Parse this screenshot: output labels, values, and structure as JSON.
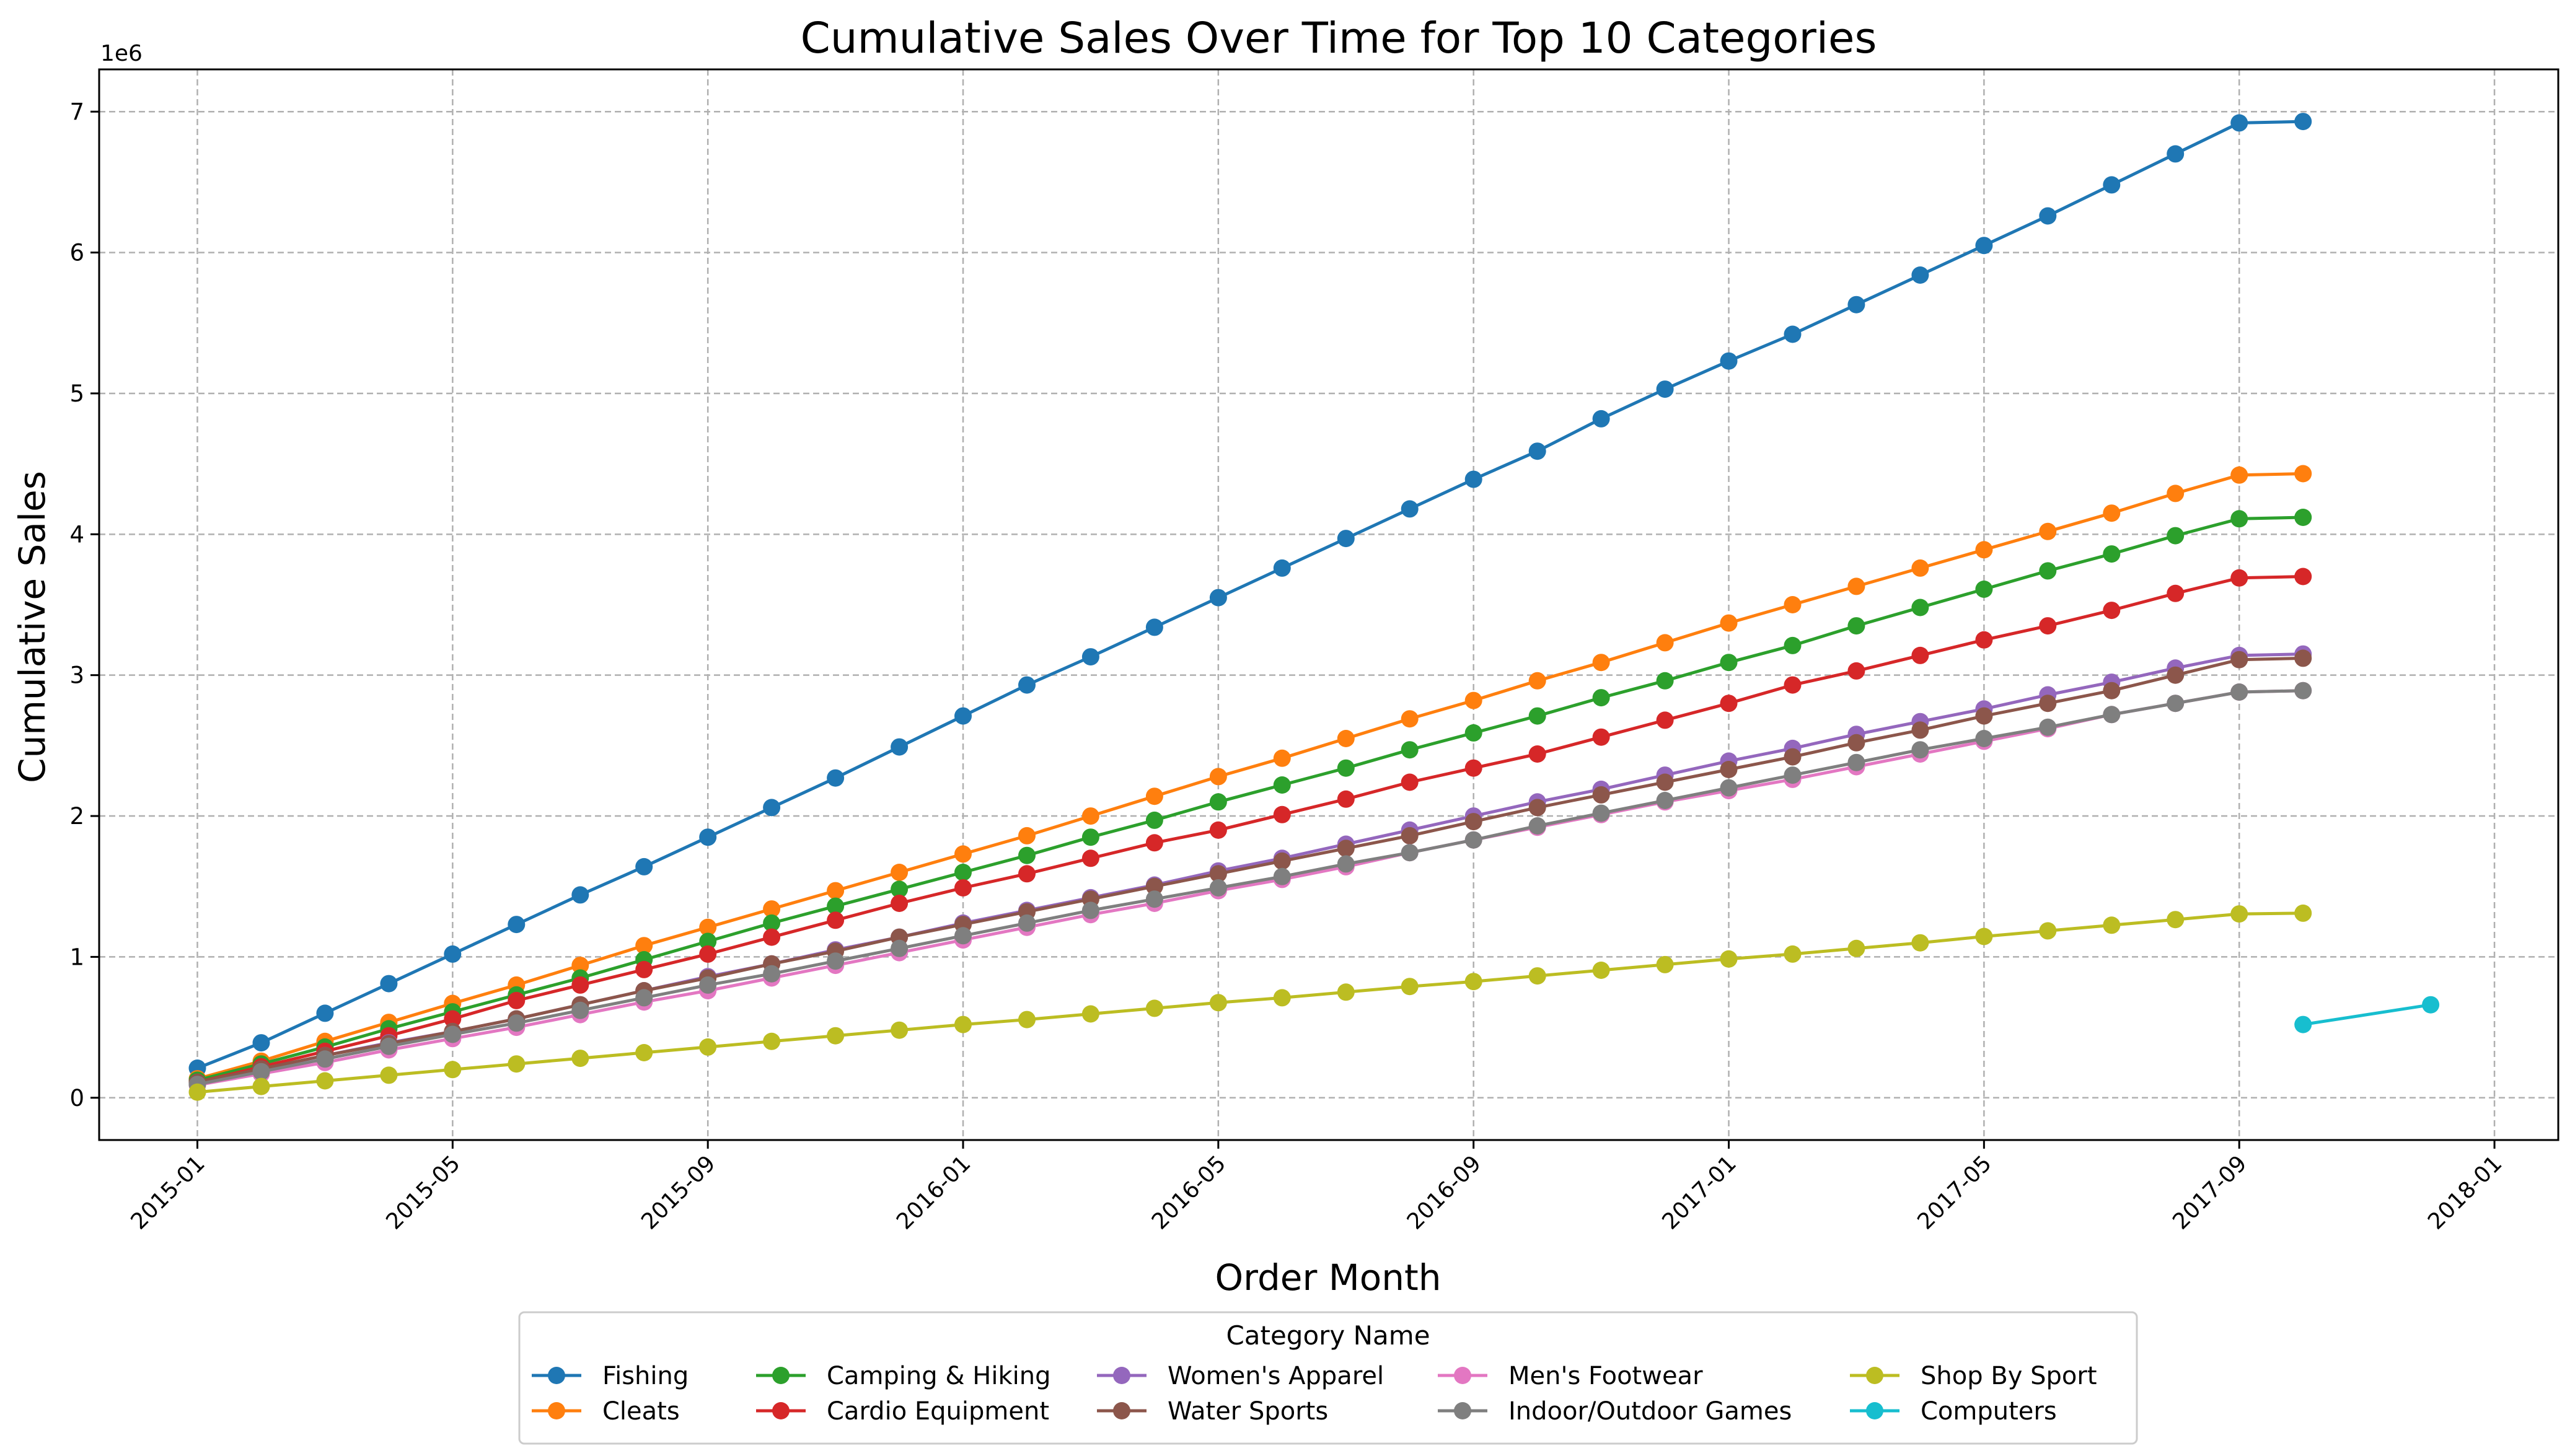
{
  "chart_data": {
    "type": "line",
    "title": "Cumulative Sales Over Time for Top 10 Categories",
    "xlabel": "Order Month",
    "ylabel": "Cumulative Sales",
    "y_offset_text": "1e6",
    "y_scale": 1000000,
    "xlim": [
      "2014-11-15",
      "2018-02-01"
    ],
    "ylim": [
      -300000,
      7300000
    ],
    "x_ticks": [
      "2015-01",
      "2015-05",
      "2015-09",
      "2016-01",
      "2016-05",
      "2016-09",
      "2017-01",
      "2017-05",
      "2017-09",
      "2018-01"
    ],
    "y_ticks": [
      0,
      1000000,
      2000000,
      3000000,
      4000000,
      5000000,
      6000000,
      7000000
    ],
    "y_tick_labels": [
      "0",
      "1",
      "2",
      "3",
      "4",
      "5",
      "6",
      "7"
    ],
    "grid": true,
    "legend_title": "Category Name",
    "legend_placement": "bottom-center",
    "series": [
      {
        "name": "Fishing",
        "color": "#1f77b4",
        "x_start": "2015-01",
        "values": [
          210000,
          390000,
          600000,
          810000,
          1020000,
          1230000,
          1440000,
          1640000,
          1850000,
          2060000,
          2270000,
          2490000,
          2710000,
          2930000,
          3130000,
          3340000,
          3550000,
          3760000,
          3970000,
          4180000,
          4390000,
          4590000,
          4820000,
          5030000,
          5230000,
          5420000,
          5630000,
          5840000,
          6050000,
          6260000,
          6480000,
          6700000,
          6920000,
          6930000
        ]
      },
      {
        "name": "Cleats",
        "color": "#ff7f0e",
        "x_start": "2015-01",
        "values": [
          135000,
          260000,
          400000,
          535000,
          670000,
          800000,
          940000,
          1080000,
          1210000,
          1340000,
          1470000,
          1600000,
          1730000,
          1860000,
          2000000,
          2140000,
          2280000,
          2410000,
          2550000,
          2690000,
          2820000,
          2960000,
          3090000,
          3230000,
          3370000,
          3500000,
          3630000,
          3760000,
          3890000,
          4020000,
          4150000,
          4290000,
          4420000,
          4430000
        ]
      },
      {
        "name": "Camping & Hiking",
        "color": "#2ca02c",
        "x_start": "2015-01",
        "values": [
          125000,
          240000,
          360000,
          490000,
          610000,
          730000,
          850000,
          980000,
          1110000,
          1240000,
          1360000,
          1480000,
          1600000,
          1720000,
          1850000,
          1970000,
          2100000,
          2220000,
          2340000,
          2470000,
          2590000,
          2710000,
          2840000,
          2960000,
          3090000,
          3210000,
          3350000,
          3480000,
          3610000,
          3740000,
          3860000,
          3990000,
          4110000,
          4120000
        ]
      },
      {
        "name": "Cardio Equipment",
        "color": "#d62728",
        "x_start": "2015-01",
        "values": [
          110000,
          220000,
          330000,
          440000,
          560000,
          690000,
          800000,
          910000,
          1020000,
          1140000,
          1260000,
          1380000,
          1490000,
          1590000,
          1700000,
          1810000,
          1900000,
          2010000,
          2120000,
          2240000,
          2340000,
          2440000,
          2560000,
          2680000,
          2800000,
          2930000,
          3030000,
          3140000,
          3250000,
          3350000,
          3460000,
          3580000,
          3690000,
          3700000
        ]
      },
      {
        "name": "Women's Apparel",
        "color": "#9467bd",
        "x_start": "2015-01",
        "values": [
          100000,
          200000,
          300000,
          390000,
          470000,
          560000,
          660000,
          760000,
          860000,
          950000,
          1050000,
          1140000,
          1240000,
          1330000,
          1420000,
          1510000,
          1610000,
          1700000,
          1800000,
          1900000,
          2000000,
          2100000,
          2190000,
          2290000,
          2390000,
          2480000,
          2580000,
          2670000,
          2760000,
          2860000,
          2950000,
          3050000,
          3140000,
          3150000
        ]
      },
      {
        "name": "Water Sports",
        "color": "#8c564b",
        "x_start": "2015-01",
        "values": [
          110000,
          205000,
          300000,
          385000,
          470000,
          560000,
          660000,
          760000,
          850000,
          950000,
          1040000,
          1140000,
          1230000,
          1320000,
          1410000,
          1500000,
          1590000,
          1680000,
          1770000,
          1860000,
          1960000,
          2060000,
          2150000,
          2240000,
          2330000,
          2420000,
          2520000,
          2610000,
          2710000,
          2800000,
          2890000,
          3000000,
          3110000,
          3120000
        ]
      },
      {
        "name": "Men's Footwear",
        "color": "#e377c2",
        "x_start": "2015-01",
        "values": [
          90000,
          170000,
          250000,
          340000,
          420000,
          500000,
          590000,
          680000,
          760000,
          850000,
          940000,
          1030000,
          1120000,
          1210000,
          1300000,
          1380000,
          1470000,
          1550000,
          1640000,
          1740000,
          1830000,
          1920000,
          2010000,
          2100000,
          2180000,
          2260000,
          2350000,
          2440000,
          2530000,
          2620000,
          2720000,
          2800000,
          2880000,
          2890000
        ]
      },
      {
        "name": "Indoor/Outdoor Games",
        "color": "#7f7f7f",
        "x_start": "2015-01",
        "values": [
          95000,
          185000,
          275000,
          365000,
          450000,
          530000,
          620000,
          710000,
          800000,
          880000,
          970000,
          1060000,
          1150000,
          1240000,
          1330000,
          1410000,
          1490000,
          1570000,
          1660000,
          1740000,
          1830000,
          1930000,
          2020000,
          2110000,
          2200000,
          2290000,
          2380000,
          2470000,
          2550000,
          2630000,
          2720000,
          2800000,
          2880000,
          2890000
        ]
      },
      {
        "name": "Shop By Sport",
        "color": "#bcbd22",
        "x_start": "2015-01",
        "values": [
          40000,
          80000,
          120000,
          160000,
          200000,
          240000,
          280000,
          320000,
          360000,
          400000,
          440000,
          480000,
          520000,
          555000,
          595000,
          635000,
          675000,
          710000,
          750000,
          790000,
          825000,
          865000,
          905000,
          945000,
          985000,
          1020000,
          1060000,
          1100000,
          1145000,
          1185000,
          1225000,
          1265000,
          1305000,
          1310000
        ]
      },
      {
        "name": "Computers",
        "color": "#17becf",
        "x_start": "2017-10",
        "values": [
          520000,
          660000
        ],
        "x": [
          "2017-10",
          "2017-12"
        ]
      }
    ]
  }
}
